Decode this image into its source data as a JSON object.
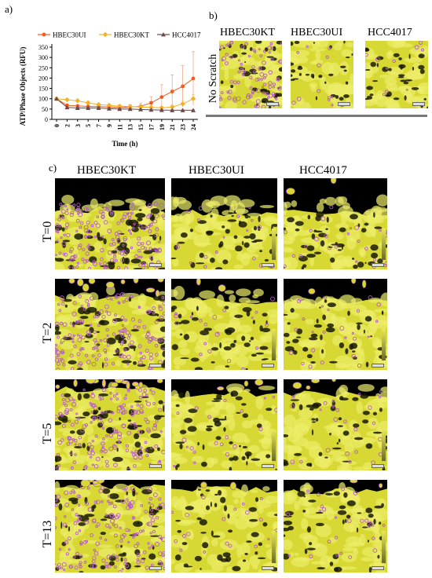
{
  "panel_a": {
    "label": "a)",
    "chart_data": {
      "type": "line",
      "x": [
        0,
        2,
        3,
        5,
        7,
        9,
        11,
        13,
        15,
        17,
        19,
        21,
        23,
        24
      ],
      "xticks": [
        "0",
        "2",
        "3",
        "5",
        "7",
        "9",
        "11",
        "13",
        "15",
        "17",
        "19",
        "21",
        "23",
        "24"
      ],
      "xlabel": "Time (h)",
      "ylabel": "ATP/Phase Objects (RFU)",
      "ylim": [
        0,
        350
      ],
      "yticks": [
        0,
        50,
        100,
        150,
        200,
        250,
        300,
        350
      ],
      "legend_position": "top",
      "series": [
        {
          "name": "HBEC30UI",
          "color": "#f25a22",
          "marker": "circle",
          "values": [
            100,
            68,
            65,
            63,
            62,
            60,
            58,
            60,
            63,
            80,
            108,
            135,
            160,
            198
          ],
          "err": [
            0,
            5,
            5,
            5,
            6,
            8,
            10,
            12,
            16,
            30,
            60,
            80,
            100,
            130
          ]
        },
        {
          "name": "HBEC30KT",
          "color": "#f5b025",
          "marker": "diamond",
          "values": [
            100,
            95,
            90,
            80,
            72,
            68,
            64,
            62,
            60,
            58,
            56,
            60,
            75,
            100
          ],
          "err": [
            0,
            8,
            10,
            10,
            8,
            8,
            8,
            8,
            8,
            8,
            8,
            10,
            15,
            20
          ]
        },
        {
          "name": "HCC4017",
          "color": "#6b4a4a",
          "marker": "triangle",
          "values": [
            100,
            58,
            55,
            55,
            55,
            52,
            50,
            50,
            48,
            46,
            45,
            44,
            44,
            44
          ],
          "err": [
            0,
            3,
            3,
            3,
            3,
            3,
            3,
            3,
            3,
            3,
            3,
            3,
            3,
            3
          ]
        }
      ]
    }
  },
  "panel_b": {
    "label": "b)",
    "row_label": "No Scratch",
    "columns": [
      "HBEC30KT",
      "HBEC30UI",
      "HCC4017"
    ]
  },
  "panel_c": {
    "label": "c)",
    "columns": [
      "HBEC30KT",
      "HBEC30UI",
      "HCC4017"
    ],
    "rows": [
      "T=0",
      "T=2",
      "T=5",
      "T=13"
    ]
  },
  "colors": {
    "cell_yellow": "#d8d834",
    "cell_yellow_light": "#ecec6a",
    "mask_purple": "#b45cc8",
    "gap_black": "#000000"
  }
}
